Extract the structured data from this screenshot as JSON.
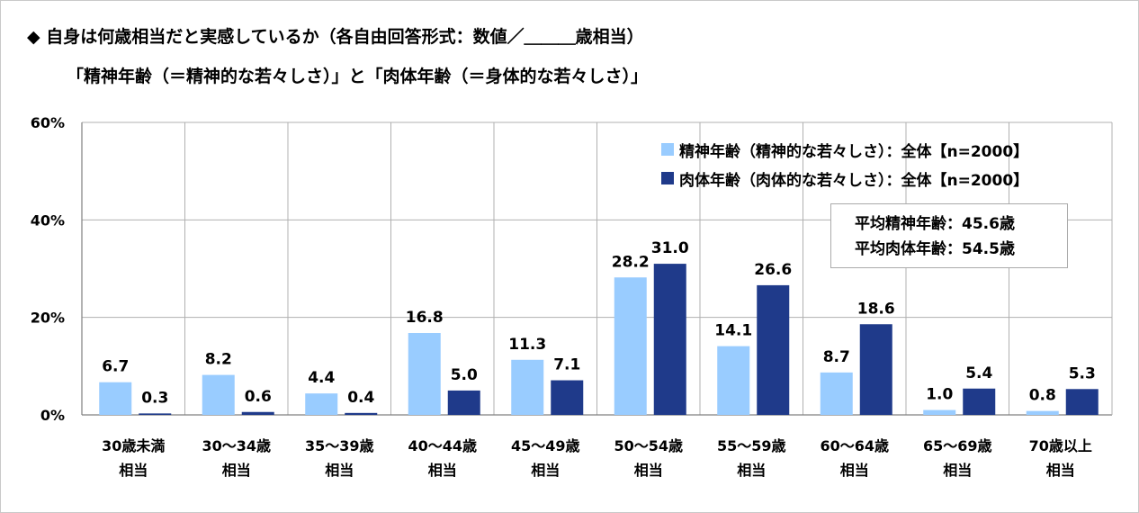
{
  "title": "◆ 自身は何歳相当だと実感しているか（各自由回答形式：数値／＿＿＿歳相当）",
  "subtitle": "「精神年齢（＝精神的な若々しさ）」と「肉体年齢（＝身体的な若々しさ）」",
  "legend": {
    "mental": "精神年齢（精神的な若々しさ）：全体【n=2000】",
    "physical": "肉体年齢（肉体的な若々しさ）：全体【n=2000】"
  },
  "averages": {
    "mental": "平均精神年齢：45.6歳",
    "physical": "平均肉体年齢：54.5歳"
  },
  "colors": {
    "mental": "#99ccff",
    "physical": "#1f3a8a",
    "grid": "#b0b0b0"
  },
  "chart_data": {
    "type": "bar",
    "ylim": [
      0,
      60
    ],
    "yticks": [
      "0%",
      "20%",
      "40%",
      "60%"
    ],
    "ytick_values": [
      0,
      20,
      40,
      60
    ],
    "categories": [
      [
        "30歳未満",
        "相当"
      ],
      [
        "30～34歳",
        "相当"
      ],
      [
        "35～39歳",
        "相当"
      ],
      [
        "40～44歳",
        "相当"
      ],
      [
        "45～49歳",
        "相当"
      ],
      [
        "50～54歳",
        "相当"
      ],
      [
        "55～59歳",
        "相当"
      ],
      [
        "60～64歳",
        "相当"
      ],
      [
        "65～69歳",
        "相当"
      ],
      [
        "70歳以上",
        "相当"
      ]
    ],
    "series": [
      {
        "name": "精神年齢（精神的な若々しさ）：全体【n=2000】",
        "values": [
          6.7,
          8.2,
          4.4,
          16.8,
          11.3,
          28.2,
          14.1,
          8.7,
          1.0,
          0.8
        ],
        "labels": [
          "6.7",
          "8.2",
          "4.4",
          "16.8",
          "11.3",
          "28.2",
          "14.1",
          "8.7",
          "1.0",
          "0.8"
        ]
      },
      {
        "name": "肉体年齢（肉体的な若々しさ）：全体【n=2000】",
        "values": [
          0.3,
          0.6,
          0.4,
          5.0,
          7.1,
          31.0,
          26.6,
          18.6,
          5.4,
          5.3
        ],
        "labels": [
          "0.3",
          "0.6",
          "0.4",
          "5.0",
          "7.1",
          "31.0",
          "26.6",
          "18.6",
          "5.4",
          "5.3"
        ]
      }
    ]
  }
}
